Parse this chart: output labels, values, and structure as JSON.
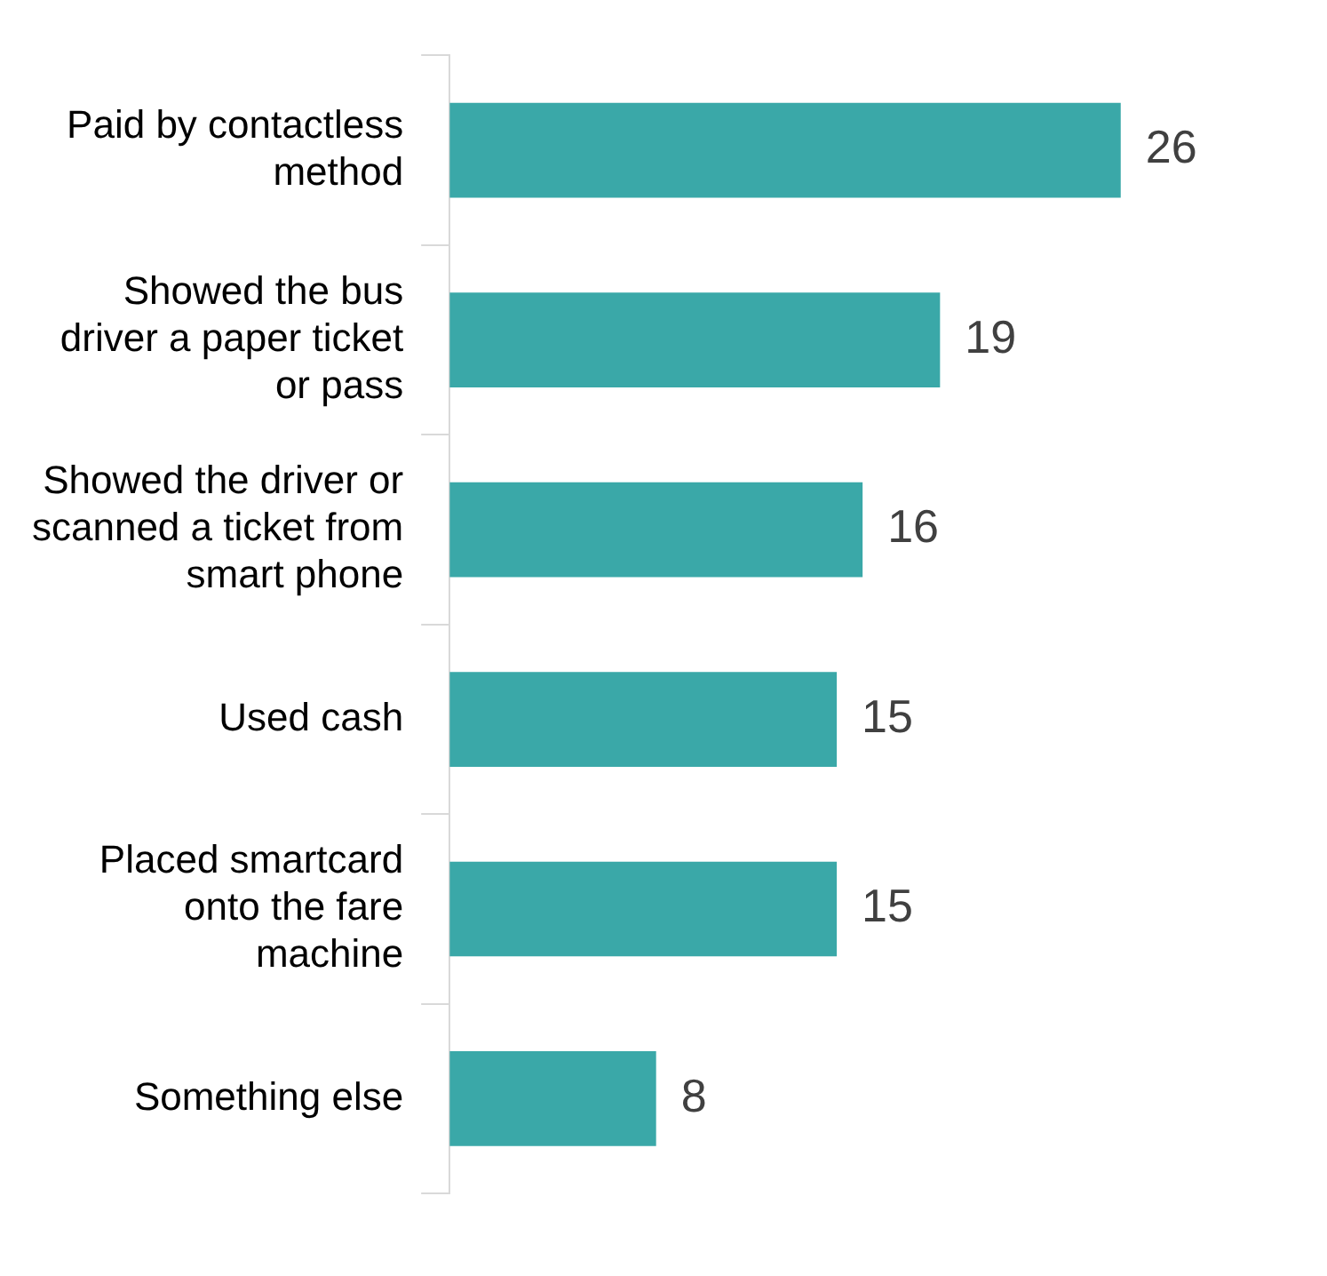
{
  "chart_data": {
    "type": "bar",
    "orientation": "horizontal",
    "categories": [
      "Paid by contactless method",
      "Showed the bus driver a paper ticket or pass",
      "Showed the driver or scanned a ticket from smart phone",
      "Used cash",
      "Placed smartcard onto the fare machine",
      "Something else"
    ],
    "values": [
      26,
      19,
      16,
      15,
      15,
      8
    ],
    "color": "#3aa8a8",
    "data_labels": true
  }
}
